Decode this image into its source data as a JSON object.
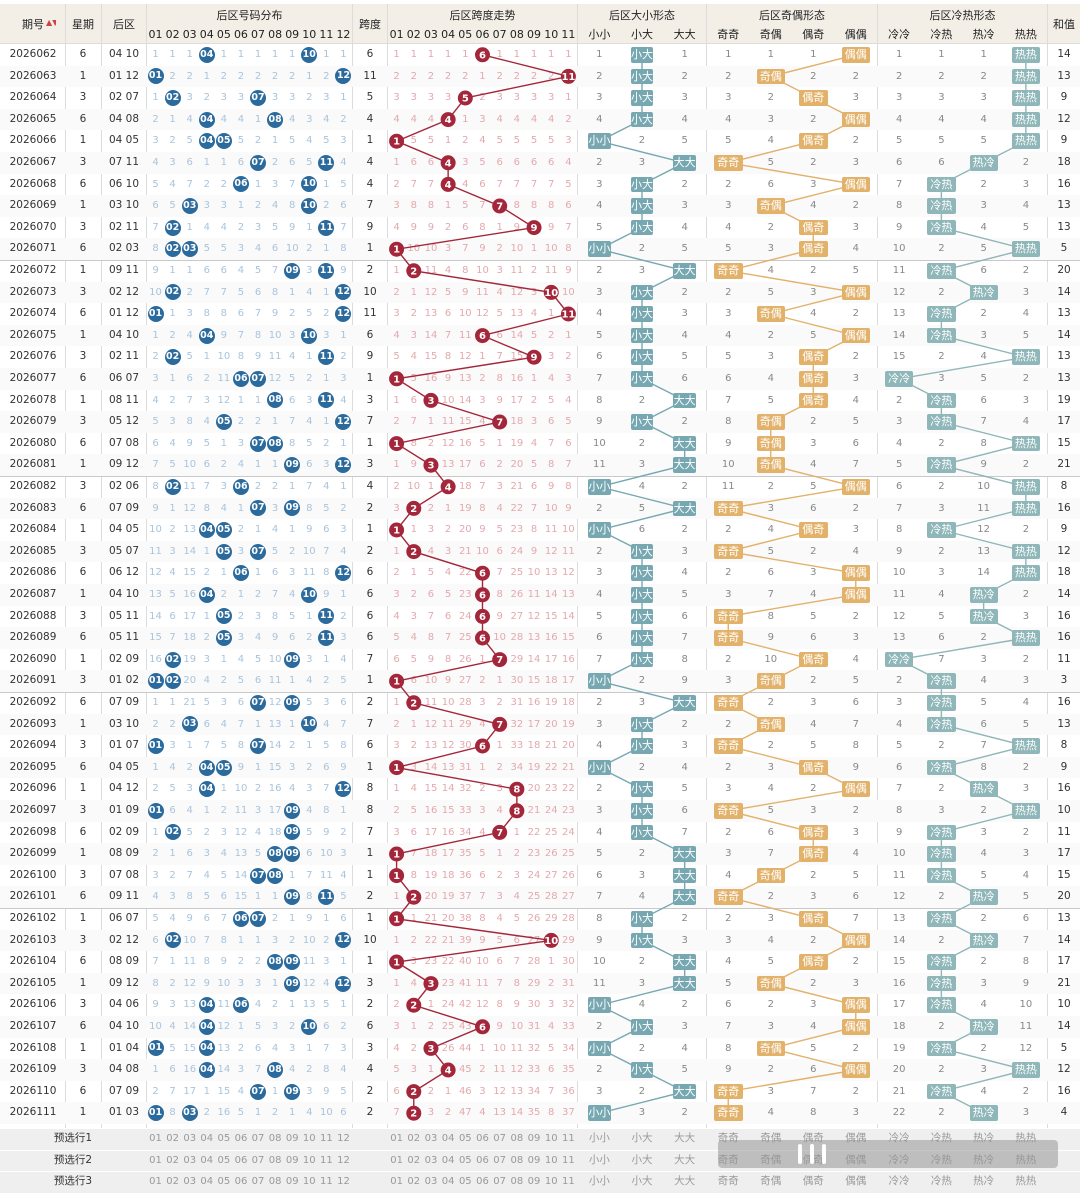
{
  "headers": {
    "period": "期号",
    "weekday": "星期",
    "back": "后区",
    "dist_group": "后区号码分布",
    "span": "跨度",
    "span_group": "后区跨度走势",
    "size_group": "后区大小形态",
    "oe_group": "后区奇偶形态",
    "ch_group": "后区冷热形态",
    "sum": "和值",
    "numbers": [
      "01",
      "02",
      "03",
      "04",
      "05",
      "06",
      "07",
      "08",
      "09",
      "10",
      "11",
      "12"
    ],
    "span_numbers": [
      "01",
      "02",
      "03",
      "04",
      "05",
      "06",
      "07",
      "08",
      "09",
      "10",
      "11"
    ],
    "size_patterns": [
      "小小",
      "小大",
      "大大"
    ],
    "oe_patterns": [
      "奇奇",
      "奇偶",
      "偶奇",
      "偶偶"
    ],
    "ch_patterns": [
      "冷冷",
      "冷热",
      "热冷",
      "热热"
    ]
  },
  "presel_labels": [
    "预选行1",
    "预选行2",
    "预选行3"
  ],
  "colors": {
    "ball": "#2b6a9c",
    "span": "#a3263a",
    "size": "#77a8b1",
    "oe": "#e2b16a",
    "ch": "#8fb6b8",
    "header_bg": "#f3efe7"
  },
  "chart_data": {
    "type": "table",
    "rows": [
      {
        "period": "2026062",
        "weekday": "6",
        "back": "04 10",
        "span": 6,
        "size": "小大",
        "oe": "偶偶",
        "ch": "热热",
        "sum": 14
      },
      {
        "period": "2026063",
        "weekday": "1",
        "back": "01 12",
        "span": 11,
        "size": "小大",
        "oe": "奇偶",
        "ch": "热热",
        "sum": 13
      },
      {
        "period": "2026064",
        "weekday": "3",
        "back": "02 07",
        "span": 5,
        "size": "小大",
        "oe": "偶奇",
        "ch": "热热",
        "sum": 9
      },
      {
        "period": "2026065",
        "weekday": "6",
        "back": "04 08",
        "span": 4,
        "size": "小大",
        "oe": "偶偶",
        "ch": "热热",
        "sum": 12
      },
      {
        "period": "2026066",
        "weekday": "1",
        "back": "04 05",
        "span": 1,
        "size": "小小",
        "oe": "偶奇",
        "ch": "热热",
        "sum": 9
      },
      {
        "period": "2026067",
        "weekday": "3",
        "back": "07 11",
        "span": 4,
        "size": "大大",
        "oe": "奇奇",
        "ch": "热冷",
        "sum": 18
      },
      {
        "period": "2026068",
        "weekday": "6",
        "back": "06 10",
        "span": 4,
        "size": "小大",
        "oe": "偶偶",
        "ch": "冷热",
        "sum": 16
      },
      {
        "period": "2026069",
        "weekday": "1",
        "back": "03 10",
        "span": 7,
        "size": "小大",
        "oe": "奇偶",
        "ch": "冷热",
        "sum": 13
      },
      {
        "period": "2026070",
        "weekday": "3",
        "back": "02 11",
        "span": 9,
        "size": "小大",
        "oe": "偶奇",
        "ch": "冷热",
        "sum": 13
      },
      {
        "period": "2026071",
        "weekday": "6",
        "back": "02 03",
        "span": 1,
        "size": "小小",
        "oe": "偶奇",
        "ch": "热热",
        "sum": 5
      },
      {
        "period": "2026072",
        "weekday": "1",
        "back": "09 11",
        "span": 2,
        "size": "大大",
        "oe": "奇奇",
        "ch": "冷热",
        "sum": 20
      },
      {
        "period": "2026073",
        "weekday": "3",
        "back": "02 12",
        "span": 10,
        "size": "小大",
        "oe": "偶偶",
        "ch": "热冷",
        "sum": 14
      },
      {
        "period": "2026074",
        "weekday": "6",
        "back": "01 12",
        "span": 11,
        "size": "小大",
        "oe": "奇偶",
        "ch": "冷热",
        "sum": 13
      },
      {
        "period": "2026075",
        "weekday": "1",
        "back": "04 10",
        "span": 6,
        "size": "小大",
        "oe": "偶偶",
        "ch": "冷热",
        "sum": 14
      },
      {
        "period": "2026076",
        "weekday": "3",
        "back": "02 11",
        "span": 9,
        "size": "小大",
        "oe": "偶奇",
        "ch": "热热",
        "sum": 13
      },
      {
        "period": "2026077",
        "weekday": "6",
        "back": "06 07",
        "span": 1,
        "size": "小大",
        "oe": "偶奇",
        "ch": "冷冷",
        "sum": 13
      },
      {
        "period": "2026078",
        "weekday": "1",
        "back": "08 11",
        "span": 3,
        "size": "大大",
        "oe": "偶奇",
        "ch": "冷热",
        "sum": 19
      },
      {
        "period": "2026079",
        "weekday": "3",
        "back": "05 12",
        "span": 7,
        "size": "小大",
        "oe": "奇偶",
        "ch": "冷热",
        "sum": 17
      },
      {
        "period": "2026080",
        "weekday": "6",
        "back": "07 08",
        "span": 1,
        "size": "大大",
        "oe": "奇偶",
        "ch": "热热",
        "sum": 15
      },
      {
        "period": "2026081",
        "weekday": "1",
        "back": "09 12",
        "span": 3,
        "size": "大大",
        "oe": "奇偶",
        "ch": "冷热",
        "sum": 21
      },
      {
        "period": "2026082",
        "weekday": "3",
        "back": "02 06",
        "span": 4,
        "size": "小小",
        "oe": "偶偶",
        "ch": "热热",
        "sum": 8
      },
      {
        "period": "2026083",
        "weekday": "6",
        "back": "07 09",
        "span": 2,
        "size": "大大",
        "oe": "奇奇",
        "ch": "热热",
        "sum": 16
      },
      {
        "period": "2026084",
        "weekday": "1",
        "back": "04 05",
        "span": 1,
        "size": "小小",
        "oe": "偶奇",
        "ch": "冷热",
        "sum": 9
      },
      {
        "period": "2026085",
        "weekday": "3",
        "back": "05 07",
        "span": 2,
        "size": "小大",
        "oe": "奇奇",
        "ch": "热热",
        "sum": 12
      },
      {
        "period": "2026086",
        "weekday": "6",
        "back": "06 12",
        "span": 6,
        "size": "小大",
        "oe": "偶偶",
        "ch": "热热",
        "sum": 18
      },
      {
        "period": "2026087",
        "weekday": "1",
        "back": "04 10",
        "span": 6,
        "size": "小大",
        "oe": "偶偶",
        "ch": "热冷",
        "sum": 14
      },
      {
        "period": "2026088",
        "weekday": "3",
        "back": "05 11",
        "span": 6,
        "size": "小大",
        "oe": "奇奇",
        "ch": "热冷",
        "sum": 16
      },
      {
        "period": "2026089",
        "weekday": "6",
        "back": "05 11",
        "span": 6,
        "size": "小大",
        "oe": "奇奇",
        "ch": "热热",
        "sum": 16
      },
      {
        "period": "2026090",
        "weekday": "1",
        "back": "02 09",
        "span": 7,
        "size": "小大",
        "oe": "偶奇",
        "ch": "冷冷",
        "sum": 11
      },
      {
        "period": "2026091",
        "weekday": "3",
        "back": "01 02",
        "span": 1,
        "size": "小小",
        "oe": "奇偶",
        "ch": "冷热",
        "sum": 3
      },
      {
        "period": "2026092",
        "weekday": "6",
        "back": "07 09",
        "span": 2,
        "size": "大大",
        "oe": "奇奇",
        "ch": "冷热",
        "sum": 16
      },
      {
        "period": "2026093",
        "weekday": "1",
        "back": "03 10",
        "span": 7,
        "size": "小大",
        "oe": "奇偶",
        "ch": "冷热",
        "sum": 13
      },
      {
        "period": "2026094",
        "weekday": "3",
        "back": "01 07",
        "span": 6,
        "size": "小大",
        "oe": "奇奇",
        "ch": "热热",
        "sum": 8
      },
      {
        "period": "2026095",
        "weekday": "6",
        "back": "04 05",
        "span": 1,
        "size": "小小",
        "oe": "偶奇",
        "ch": "冷热",
        "sum": 9
      },
      {
        "period": "2026096",
        "weekday": "1",
        "back": "04 12",
        "span": 8,
        "size": "小大",
        "oe": "偶偶",
        "ch": "热冷",
        "sum": 16
      },
      {
        "period": "2026097",
        "weekday": "3",
        "back": "01 09",
        "span": 8,
        "size": "小大",
        "oe": "奇奇",
        "ch": "热热",
        "sum": 10
      },
      {
        "period": "2026098",
        "weekday": "6",
        "back": "02 09",
        "span": 7,
        "size": "小大",
        "oe": "偶奇",
        "ch": "冷热",
        "sum": 11
      },
      {
        "period": "2026099",
        "weekday": "1",
        "back": "08 09",
        "span": 1,
        "size": "大大",
        "oe": "偶奇",
        "ch": "冷热",
        "sum": 17
      },
      {
        "period": "2026100",
        "weekday": "3",
        "back": "07 08",
        "span": 1,
        "size": "大大",
        "oe": "奇偶",
        "ch": "冷热",
        "sum": 15
      },
      {
        "period": "2026101",
        "weekday": "6",
        "back": "09 11",
        "span": 2,
        "size": "大大",
        "oe": "奇奇",
        "ch": "热冷",
        "sum": 20
      },
      {
        "period": "2026102",
        "weekday": "1",
        "back": "06 07",
        "span": 1,
        "size": "小大",
        "oe": "偶奇",
        "ch": "冷热",
        "sum": 13
      },
      {
        "period": "2026103",
        "weekday": "3",
        "back": "02 12",
        "span": 10,
        "size": "小大",
        "oe": "偶偶",
        "ch": "热冷",
        "sum": 14
      },
      {
        "period": "2026104",
        "weekday": "6",
        "back": "08 09",
        "span": 1,
        "size": "大大",
        "oe": "偶奇",
        "ch": "冷热",
        "sum": 17
      },
      {
        "period": "2026105",
        "weekday": "1",
        "back": "09 12",
        "span": 3,
        "size": "大大",
        "oe": "奇偶",
        "ch": "冷热",
        "sum": 21
      },
      {
        "period": "2026106",
        "weekday": "3",
        "back": "04 06",
        "span": 2,
        "size": "小小",
        "oe": "偶偶",
        "ch": "冷热",
        "sum": 10
      },
      {
        "period": "2026107",
        "weekday": "6",
        "back": "04 10",
        "span": 6,
        "size": "小大",
        "oe": "偶偶",
        "ch": "热冷",
        "sum": 14
      },
      {
        "period": "2026108",
        "weekday": "1",
        "back": "01 04",
        "span": 3,
        "size": "小小",
        "oe": "奇偶",
        "ch": "冷热",
        "sum": 5
      },
      {
        "period": "2026109",
        "weekday": "3",
        "back": "04 08",
        "span": 4,
        "size": "小大",
        "oe": "偶偶",
        "ch": "热热",
        "sum": 12
      },
      {
        "period": "2026110",
        "weekday": "6",
        "back": "07 09",
        "span": 2,
        "size": "大大",
        "oe": "奇奇",
        "ch": "冷热",
        "sum": 16
      },
      {
        "period": "2026111",
        "weekday": "1",
        "back": "01 03",
        "span": 2,
        "size": "小小",
        "oe": "奇奇",
        "ch": "热冷",
        "sum": 4
      }
    ]
  }
}
